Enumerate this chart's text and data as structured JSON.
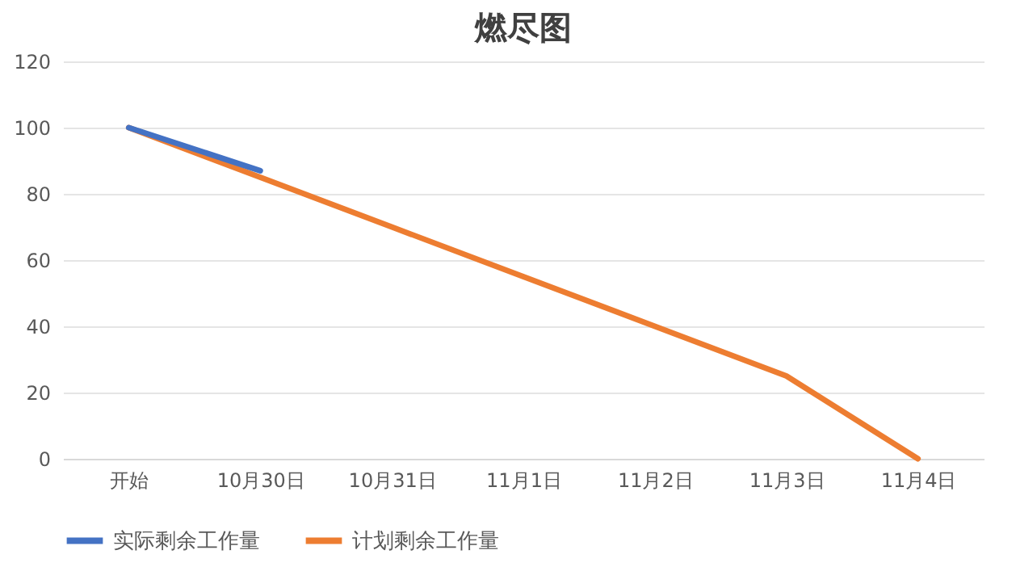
{
  "chart_data": {
    "type": "line",
    "title": "燃尽图",
    "categories": [
      "开始",
      "10月30日",
      "10月31日",
      "11月1日",
      "11月2日",
      "11月3日",
      "11月4日"
    ],
    "series": [
      {
        "name": "实际剩余工作量",
        "color": "#4472c4",
        "values": [
          100,
          87,
          null,
          null,
          null,
          null,
          null
        ]
      },
      {
        "name": "计划剩余工作量",
        "color": "#ed7d31",
        "values": [
          100,
          85,
          70,
          55,
          40,
          25,
          0
        ]
      }
    ],
    "ylim": [
      0,
      120
    ],
    "yticks": [
      0,
      20,
      40,
      60,
      80,
      100,
      120
    ],
    "grid": "y",
    "legend": "bottom",
    "marker": "none",
    "line_style": "solid"
  }
}
